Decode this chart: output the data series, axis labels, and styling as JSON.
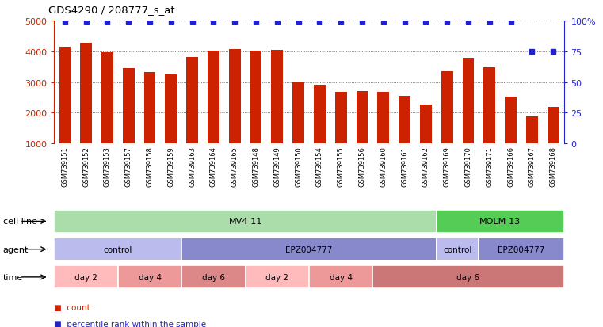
{
  "title": "GDS4290 / 208777_s_at",
  "samples": [
    "GSM739151",
    "GSM739152",
    "GSM739153",
    "GSM739157",
    "GSM739158",
    "GSM739159",
    "GSM739163",
    "GSM739164",
    "GSM739165",
    "GSM739148",
    "GSM739149",
    "GSM739150",
    "GSM739154",
    "GSM739155",
    "GSM739156",
    "GSM739160",
    "GSM739161",
    "GSM739162",
    "GSM739169",
    "GSM739170",
    "GSM739171",
    "GSM739166",
    "GSM739167",
    "GSM739168"
  ],
  "counts": [
    4150,
    4280,
    3970,
    3450,
    3320,
    3250,
    3820,
    4020,
    4060,
    4030,
    4050,
    3000,
    2920,
    2680,
    2700,
    2680,
    2550,
    2260,
    3350,
    3780,
    3470,
    2530,
    1870,
    2200
  ],
  "percentile_ranks": [
    99,
    99,
    99,
    99,
    99,
    99,
    99,
    99,
    99,
    99,
    99,
    99,
    99,
    99,
    99,
    99,
    99,
    99,
    99,
    99,
    99,
    99,
    75,
    75
  ],
  "ylim_left": [
    1000,
    5000
  ],
  "ylim_right": [
    0,
    100
  ],
  "yticks_left": [
    1000,
    2000,
    3000,
    4000,
    5000
  ],
  "yticks_right": [
    0,
    25,
    50,
    75,
    100
  ],
  "bar_color": "#cc2200",
  "dot_color": "#2222cc",
  "cell_line_mv411_color": "#aaddaa",
  "cell_line_molm13_color": "#55cc55",
  "agent_control_color": "#bbbbee",
  "agent_epz_color": "#8888cc",
  "time_day2_color": "#ffbbbb",
  "time_day4_color": "#ee9999",
  "time_day6_light_color": "#dd8888",
  "time_day6_dark_color": "#cc7777",
  "cell_line_regions": [
    {
      "label": "MV4-11",
      "start": 0,
      "end": 18
    },
    {
      "label": "MOLM-13",
      "start": 18,
      "end": 24
    }
  ],
  "agent_regions": [
    {
      "label": "control",
      "start": 0,
      "end": 6
    },
    {
      "label": "EPZ004777",
      "start": 6,
      "end": 18
    },
    {
      "label": "control",
      "start": 18,
      "end": 20
    },
    {
      "label": "EPZ004777",
      "start": 20,
      "end": 24
    }
  ],
  "time_regions": [
    {
      "label": "day 2",
      "start": 0,
      "end": 3,
      "shade": 0
    },
    {
      "label": "day 4",
      "start": 3,
      "end": 6,
      "shade": 1
    },
    {
      "label": "day 6",
      "start": 6,
      "end": 9,
      "shade": 2
    },
    {
      "label": "day 2",
      "start": 9,
      "end": 12,
      "shade": 0
    },
    {
      "label": "day 4",
      "start": 12,
      "end": 15,
      "shade": 1
    },
    {
      "label": "day 6",
      "start": 15,
      "end": 24,
      "shade": 3
    }
  ],
  "legend_count_color": "#cc2200",
  "legend_pct_color": "#2222cc",
  "background_color": "#ffffff",
  "grid_color": "#888888",
  "xlabel_bg_color": "#cccccc"
}
